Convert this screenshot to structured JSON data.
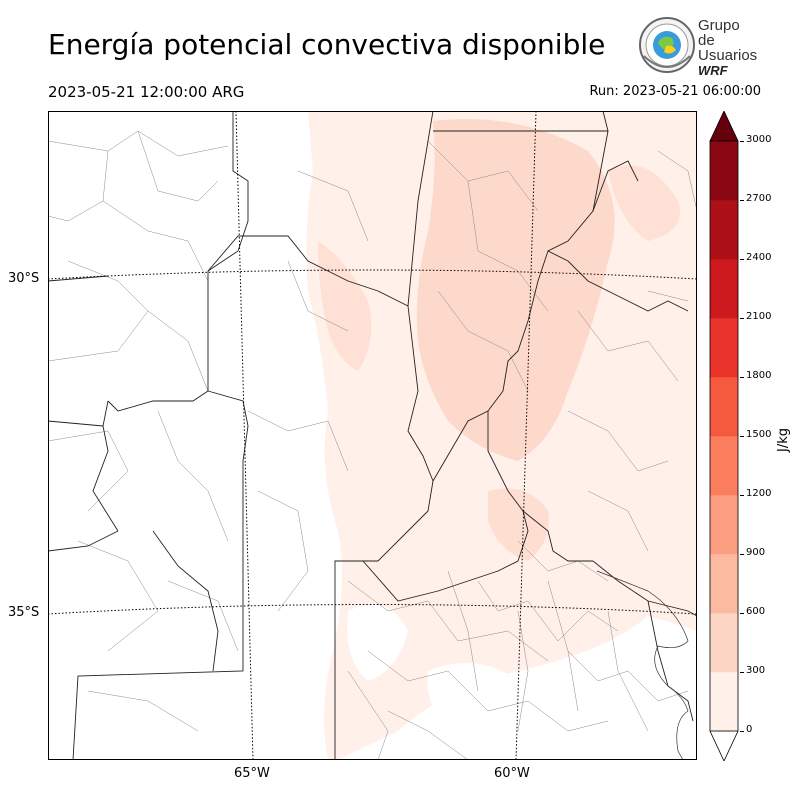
{
  "header": {
    "title": "Energía potencial convectiva disponible",
    "valid_time": "2023-05-21 12:00:00 ARG",
    "run_time": "Run: 2023-05-21 06:00:00"
  },
  "logo": {
    "line1": "Grupo de",
    "line2": "Usuarios",
    "line3": "WRF"
  },
  "map": {
    "lat_labels": [
      "30°S",
      "35°S"
    ],
    "lon_labels": [
      "65°W",
      "60°W"
    ]
  },
  "colorbar": {
    "unit": "J/kg",
    "ticks": [
      "3000",
      "2700",
      "2400",
      "2100",
      "1800",
      "1500",
      "1200",
      "900",
      "600",
      "300",
      "0"
    ],
    "colors": [
      "#fff0ea",
      "#fdd5c5",
      "#fcbba1",
      "#fc9e82",
      "#fb7d5d",
      "#f65a3e",
      "#e8342a",
      "#cc1a1e",
      "#ad1016",
      "#8a0812"
    ],
    "over_color": "#67000d",
    "under_color": "#ffffff"
  }
}
